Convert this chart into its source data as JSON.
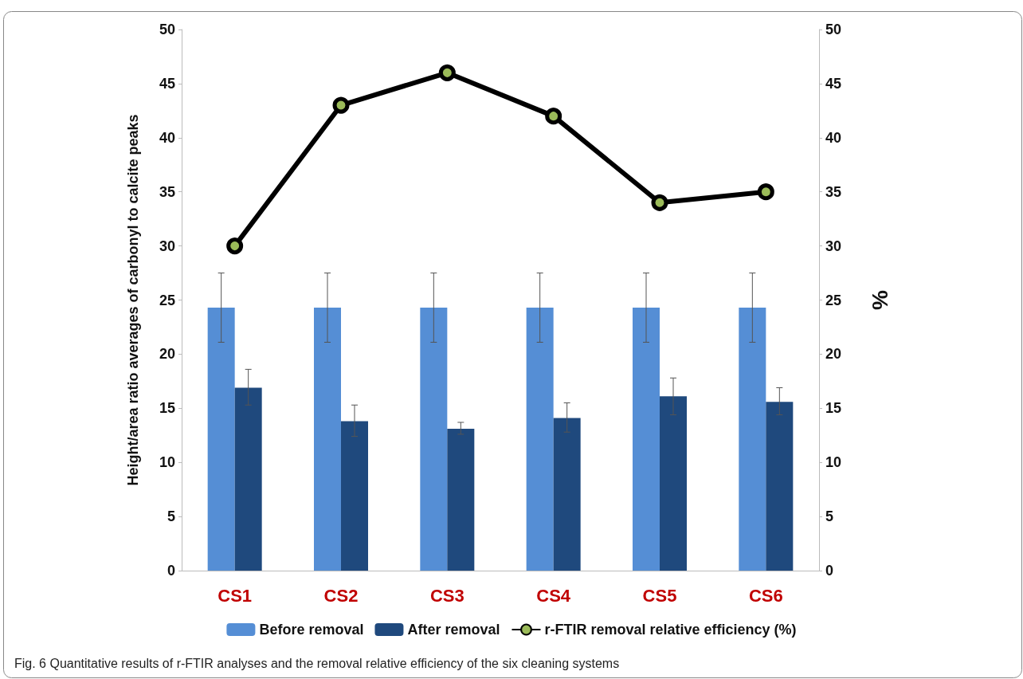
{
  "chart_data": {
    "type": "bar",
    "categories": [
      "CS1",
      "CS2",
      "CS3",
      "CS4",
      "CS5",
      "CS6"
    ],
    "ylabel": "Height/area ratio averages of carbonyl to calcite peaks",
    "y2label": "%",
    "ylim": [
      0,
      50
    ],
    "yticks": [
      0,
      5,
      10,
      15,
      20,
      25,
      30,
      35,
      40,
      45,
      50
    ],
    "y2lim": [
      0,
      50
    ],
    "y2ticks": [
      0,
      5,
      10,
      15,
      20,
      25,
      30,
      35,
      40,
      45,
      50
    ],
    "series": [
      {
        "name": "Before removal",
        "color": "#558ed5",
        "values": [
          24.3,
          24.3,
          24.3,
          24.3,
          24.3,
          24.3
        ],
        "errors": [
          3.2,
          3.2,
          3.2,
          3.2,
          3.2,
          3.2
        ]
      },
      {
        "name": "After removal",
        "color": "#1f497d",
        "values": [
          16.9,
          13.8,
          13.1,
          14.1,
          16.1,
          15.6
        ],
        "errors": [
          [
            15.3,
            18.6
          ],
          [
            12.4,
            15.3
          ],
          [
            12.6,
            13.7
          ],
          [
            12.8,
            15.5
          ],
          [
            14.4,
            17.8
          ],
          [
            14.4,
            16.9
          ]
        ]
      },
      {
        "name": "r-FTIR removal relative efficiency (%)",
        "type": "line",
        "axis": "y2",
        "color": "#000000",
        "marker": "circle",
        "values": [
          30,
          43,
          46,
          42,
          34,
          35
        ]
      }
    ],
    "grid": false,
    "legend": "bottom",
    "annotations": [
      "Fig. 6 Quantitative results of r-FTIR analyses and the removal relative efficiency of the six cleaning systems"
    ]
  }
}
